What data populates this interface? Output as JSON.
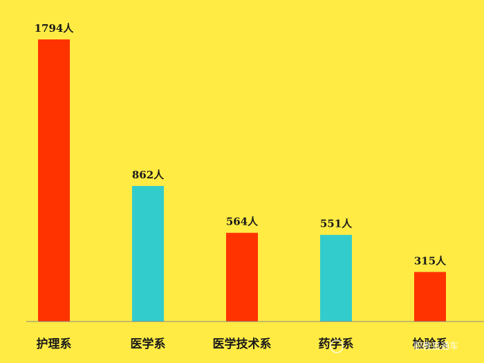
{
  "chart_data": {
    "type": "bar",
    "title": "",
    "xlabel": "",
    "ylabel": "",
    "categories": [
      "护理系",
      "医学系",
      "医学技术系",
      "药学系",
      "检验系"
    ],
    "values": [
      1794,
      862,
      564,
      551,
      315
    ],
    "data_labels": [
      "1794人",
      "862人",
      "564人",
      "551人",
      "315人"
    ],
    "bar_colors": [
      "#FF3300",
      "#33CCCC",
      "#FF3300",
      "#33CCCC",
      "#FF3300"
    ],
    "ylim": [
      0,
      1794
    ],
    "grid": false,
    "legend": "none"
  },
  "colors": {
    "background": "#FFEB44",
    "axis": "#888888"
  },
  "watermark": {
    "text": "职教直通车"
  }
}
